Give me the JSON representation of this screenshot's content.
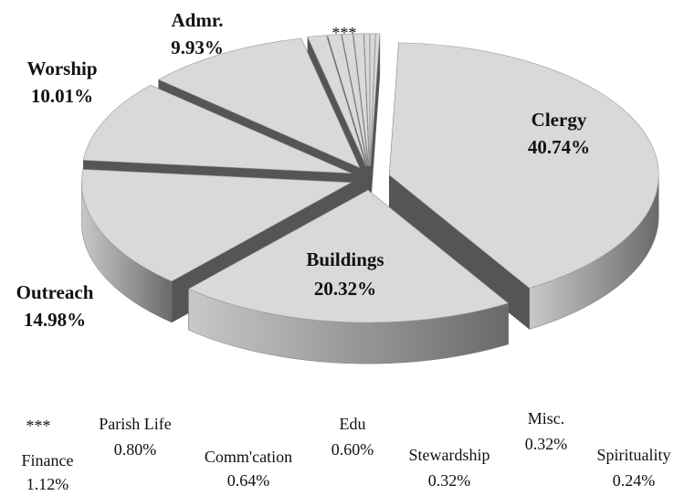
{
  "chart_data": {
    "type": "pie",
    "categories": [
      "Clergy",
      "Buildings",
      "Outreach",
      "Worship",
      "Admr.",
      "Finance",
      "Parish Life",
      "Comm'cation",
      "Edu",
      "Stewardship",
      "Misc.",
      "Spirituality"
    ],
    "values": [
      40.74,
      20.32,
      14.98,
      10.01,
      9.93,
      1.12,
      0.8,
      0.64,
      0.6,
      0.32,
      0.32,
      0.24
    ],
    "value_labels": [
      "40.74%",
      "20.32%",
      "14.98%",
      "10.01%",
      "9.93%",
      "1.12%",
      "0.80%",
      "0.64%",
      "0.60%",
      "0.32%",
      "0.32%",
      "0.24%"
    ],
    "annotation": "***",
    "color": "#d9d9d9"
  }
}
